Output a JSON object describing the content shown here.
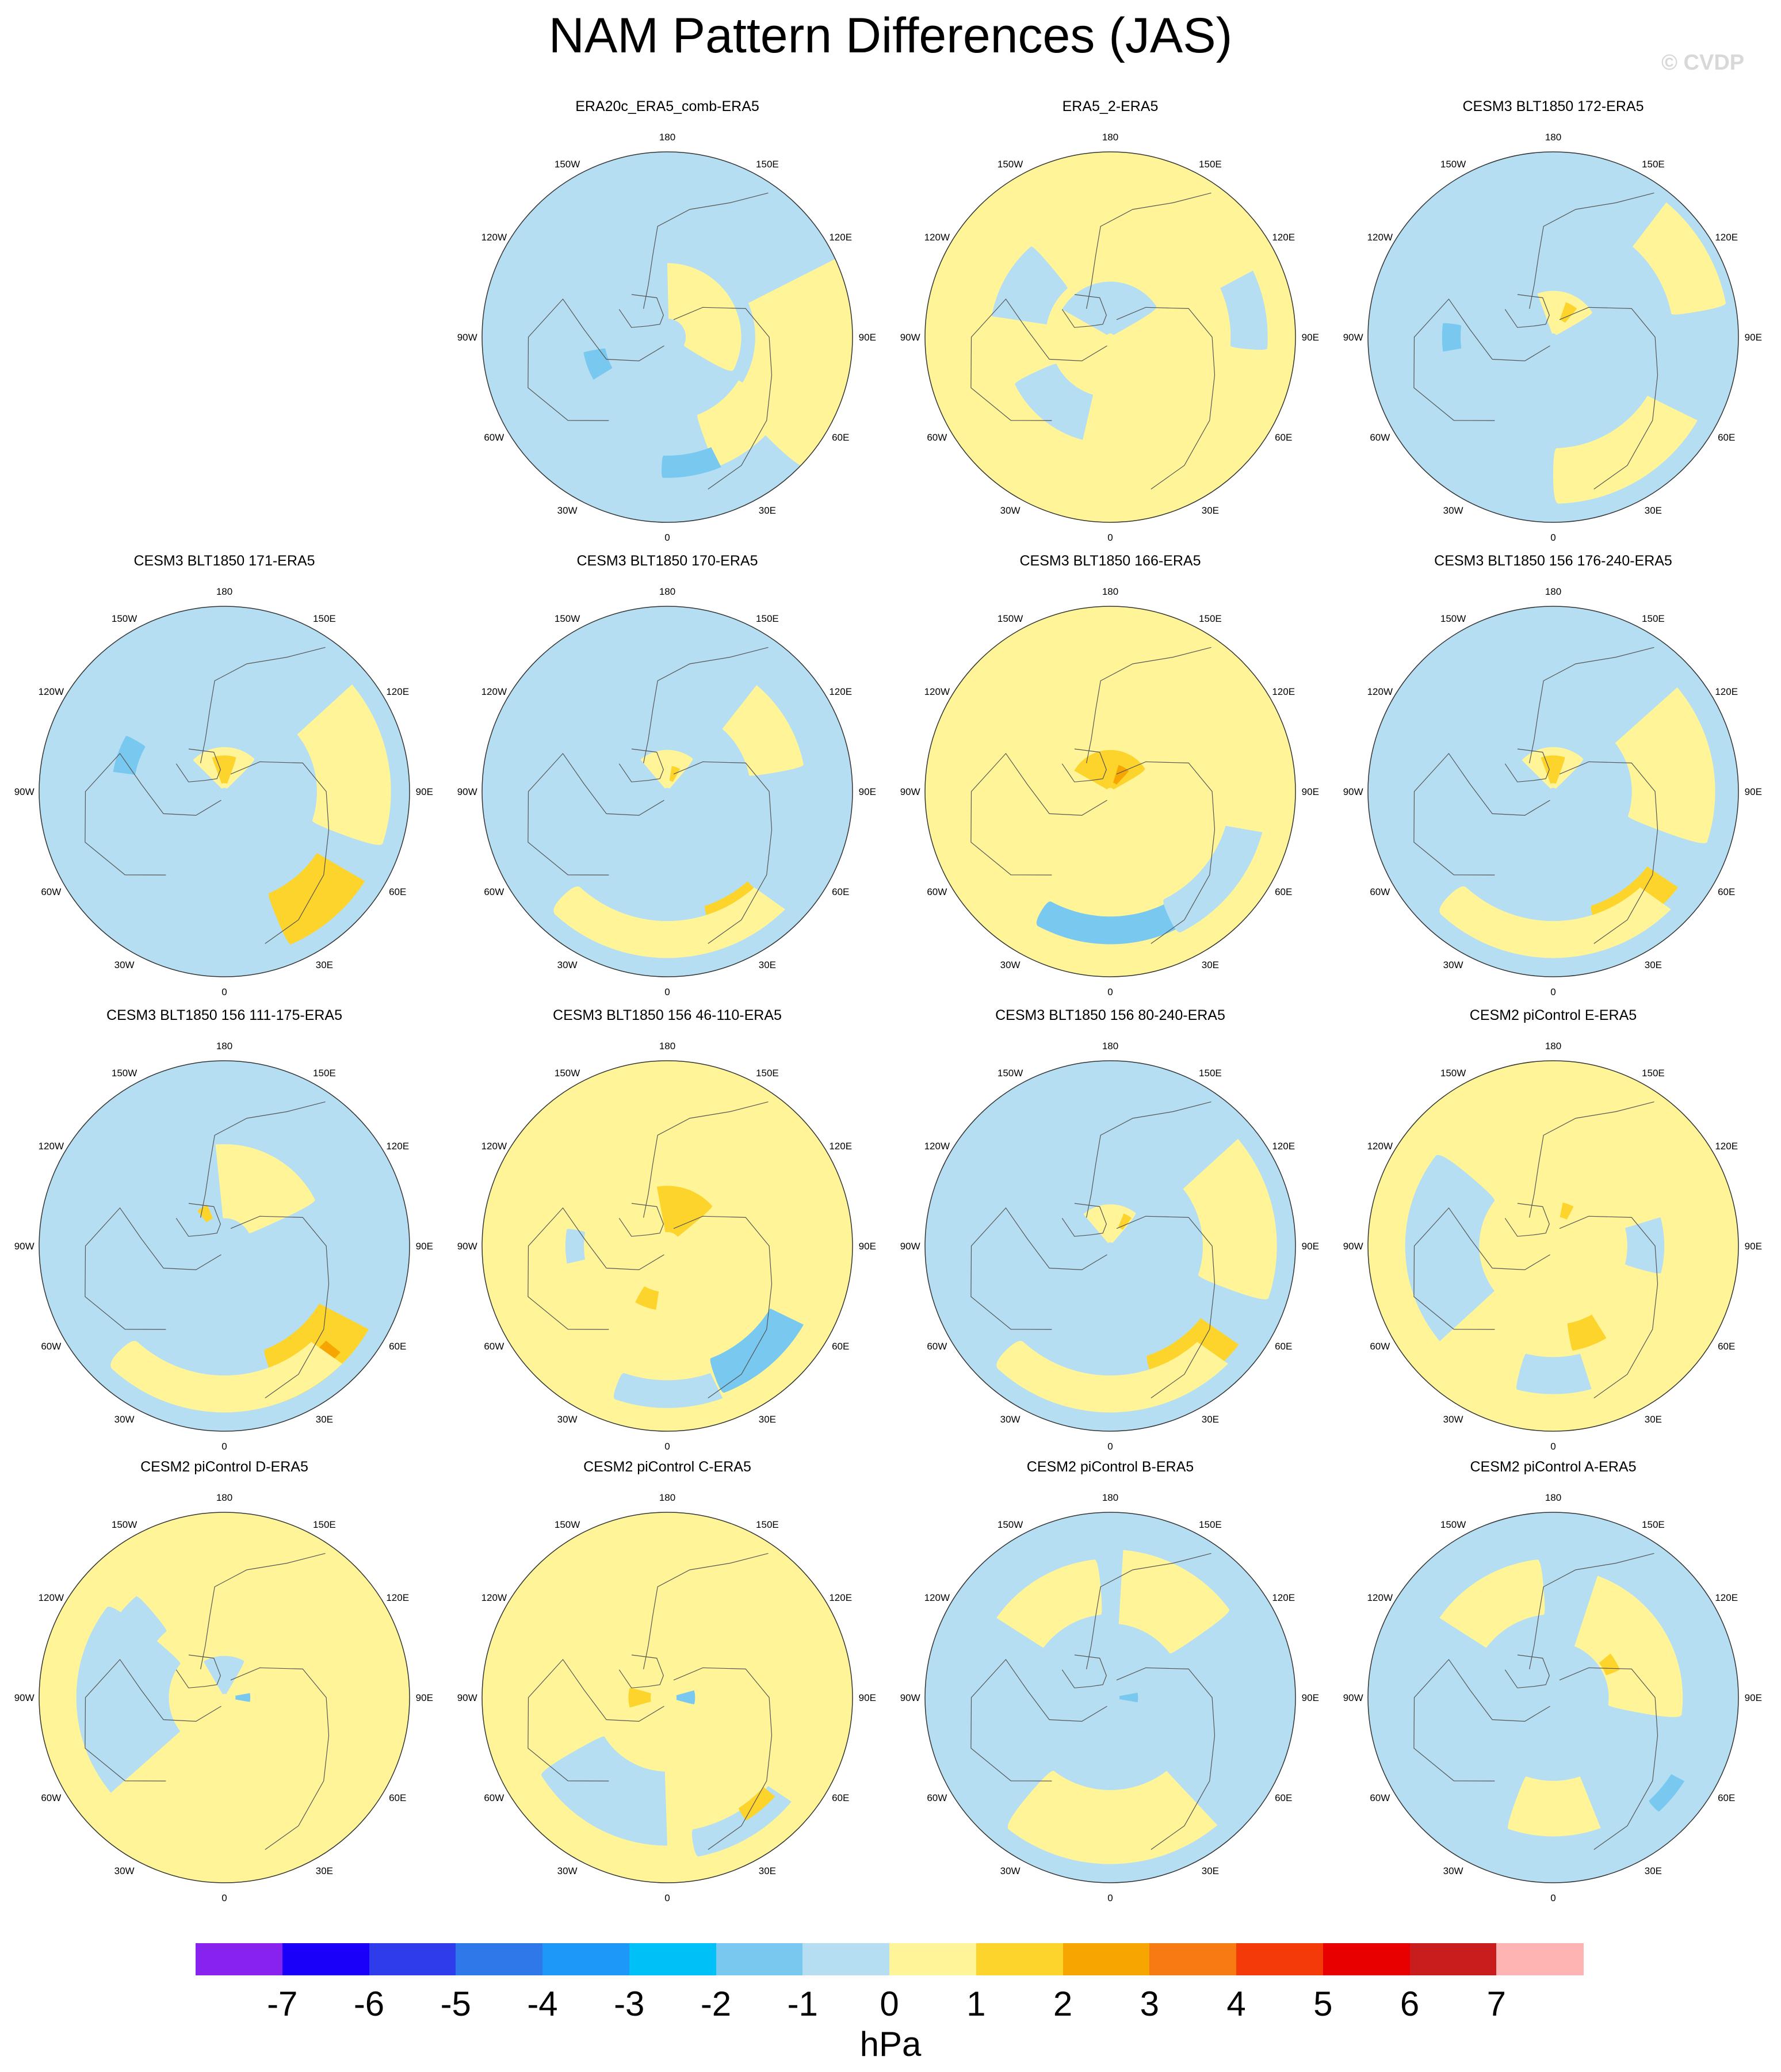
{
  "title": "NAM Pattern Differences (JAS)",
  "watermark": "© CVDP",
  "longitude_labels": [
    "180",
    "150E",
    "120E",
    "90E",
    "60E",
    "30E",
    "0",
    "30W",
    "60W",
    "90W",
    "120W",
    "150W"
  ],
  "panels": [
    {
      "title": "ERA20c_ERA5_comb-ERA5",
      "background": "#b5def2",
      "blobs": [
        {
          "a": 100,
          "r": 0.75,
          "w": 70,
          "l": 0.55,
          "c": "#fff598"
        },
        {
          "a": 140,
          "r": 0.6,
          "w": 40,
          "l": 0.3,
          "c": "#fff598"
        },
        {
          "a": 60,
          "r": 0.25,
          "w": 120,
          "l": 0.3,
          "c": "#fff598"
        },
        {
          "a": 170,
          "r": 0.7,
          "w": 25,
          "l": 0.12,
          "c": "#78c8f0"
        },
        {
          "a": 250,
          "r": 0.4,
          "w": 20,
          "l": 0.12,
          "c": "#78c8f0"
        }
      ]
    },
    {
      "title": "ERA5_2-ERA5",
      "background": "#fff598",
      "blobs": [
        {
          "a": 0,
          "r": 0.15,
          "w": 120,
          "l": 0.3,
          "c": "#b5def2"
        },
        {
          "a": 300,
          "r": 0.5,
          "w": 40,
          "l": 0.3,
          "c": "#b5def2"
        },
        {
          "a": 80,
          "r": 0.75,
          "w": 30,
          "l": 0.2,
          "c": "#b5def2"
        },
        {
          "a": 220,
          "r": 0.45,
          "w": 50,
          "l": 0.25,
          "c": "#b5def2"
        }
      ]
    },
    {
      "title": "CESM3 BLT1850 172-ERA5",
      "background": "#b5def2",
      "blobs": [
        {
          "a": 150,
          "r": 0.75,
          "w": 60,
          "l": 0.3,
          "c": "#fff598"
        },
        {
          "a": 20,
          "r": 0.1,
          "w": 80,
          "l": 0.3,
          "c": "#fff598"
        },
        {
          "a": 60,
          "r": 0.8,
          "w": 40,
          "l": 0.3,
          "c": "#fff598"
        },
        {
          "a": 30,
          "r": 0.15,
          "w": 20,
          "l": 0.1,
          "c": "#fdd42b"
        },
        {
          "a": 270,
          "r": 0.55,
          "w": 15,
          "l": 0.1,
          "c": "#78c8f0"
        }
      ]
    },
    {
      "title": "CESM3 BLT1850 171-ERA5",
      "background": "#b5def2",
      "blobs": [
        {
          "a": 140,
          "r": 0.75,
          "w": 35,
          "l": 0.3,
          "c": "#fdd42b"
        },
        {
          "a": 80,
          "r": 0.7,
          "w": 60,
          "l": 0.4,
          "c": "#fff598"
        },
        {
          "a": 0,
          "r": 0.1,
          "w": 90,
          "l": 0.28,
          "c": "#fff598"
        },
        {
          "a": 0,
          "r": 0.12,
          "w": 40,
          "l": 0.15,
          "c": "#fdd42b"
        },
        {
          "a": 290,
          "r": 0.55,
          "w": 20,
          "l": 0.12,
          "c": "#78c8f0"
        }
      ]
    },
    {
      "title": "CESM3 BLT1850 170-ERA5",
      "background": "#b5def2",
      "blobs": [
        {
          "a": 150,
          "r": 0.75,
          "w": 25,
          "l": 0.2,
          "c": "#fdd42b"
        },
        {
          "a": 180,
          "r": 0.8,
          "w": 90,
          "l": 0.2,
          "c": "#fff598"
        },
        {
          "a": 60,
          "r": 0.6,
          "w": 40,
          "l": 0.3,
          "c": "#fff598"
        },
        {
          "a": 0,
          "r": 0.1,
          "w": 80,
          "l": 0.25,
          "c": "#fff598"
        },
        {
          "a": 20,
          "r": 0.1,
          "w": 20,
          "l": 0.08,
          "c": "#fdd42b"
        }
      ]
    },
    {
      "title": "CESM3 BLT1850 166-ERA5",
      "background": "#fff598",
      "blobs": [
        {
          "a": 180,
          "r": 0.75,
          "w": 60,
          "l": 0.15,
          "c": "#78c8f0"
        },
        {
          "a": 130,
          "r": 0.75,
          "w": 50,
          "l": 0.2,
          "c": "#b5def2"
        },
        {
          "a": 0,
          "r": 0.05,
          "w": 120,
          "l": 0.35,
          "c": "#fdd42b"
        },
        {
          "a": 30,
          "r": 0.1,
          "w": 25,
          "l": 0.1,
          "c": "#f7a500"
        }
      ]
    },
    {
      "title": "CESM3 BLT1850 156 176-240-ERA5",
      "background": "#b5def2",
      "blobs": [
        {
          "a": 145,
          "r": 0.75,
          "w": 35,
          "l": 0.2,
          "c": "#fdd42b"
        },
        {
          "a": 180,
          "r": 0.8,
          "w": 90,
          "l": 0.2,
          "c": "#fff598"
        },
        {
          "a": 80,
          "r": 0.65,
          "w": 60,
          "l": 0.45,
          "c": "#fff598"
        },
        {
          "a": 0,
          "r": 0.1,
          "w": 90,
          "l": 0.28,
          "c": "#fff598"
        },
        {
          "a": 0,
          "r": 0.12,
          "w": 40,
          "l": 0.15,
          "c": "#fdd42b"
        }
      ]
    },
    {
      "title": "CESM3 BLT1850 156 111-175-ERA5",
      "background": "#b5def2",
      "blobs": [
        {
          "a": 140,
          "r": 0.75,
          "w": 40,
          "l": 0.3,
          "c": "#fdd42b"
        },
        {
          "a": 140,
          "r": 0.8,
          "w": 15,
          "l": 0.1,
          "c": "#f7a500"
        },
        {
          "a": 180,
          "r": 0.8,
          "w": 90,
          "l": 0.2,
          "c": "#fff598"
        },
        {
          "a": 30,
          "r": 0.35,
          "w": 70,
          "l": 0.4,
          "c": "#fff598"
        },
        {
          "a": 330,
          "r": 0.2,
          "w": 15,
          "l": 0.08,
          "c": "#fdd42b"
        }
      ]
    },
    {
      "title": "CESM3 BLT1850 156 46-110-ERA5",
      "background": "#fff598",
      "blobs": [
        {
          "a": 140,
          "r": 0.75,
          "w": 40,
          "l": 0.2,
          "c": "#78c8f0"
        },
        {
          "a": 180,
          "r": 0.8,
          "w": 40,
          "l": 0.15,
          "c": "#b5def2"
        },
        {
          "a": 20,
          "r": 0.2,
          "w": 60,
          "l": 0.25,
          "c": "#fdd42b"
        },
        {
          "a": 200,
          "r": 0.3,
          "w": 20,
          "l": 0.1,
          "c": "#fdd42b"
        },
        {
          "a": 270,
          "r": 0.5,
          "w": 20,
          "l": 0.1,
          "c": "#b5def2"
        }
      ]
    },
    {
      "title": "CESM3 BLT1850 156 80-240-ERA5",
      "background": "#b5def2",
      "blobs": [
        {
          "a": 145,
          "r": 0.75,
          "w": 35,
          "l": 0.25,
          "c": "#fdd42b"
        },
        {
          "a": 180,
          "r": 0.8,
          "w": 90,
          "l": 0.2,
          "c": "#fff598"
        },
        {
          "a": 80,
          "r": 0.7,
          "w": 60,
          "l": 0.4,
          "c": "#fff598"
        },
        {
          "a": 0,
          "r": 0.1,
          "w": 80,
          "l": 0.25,
          "c": "#fff598"
        },
        {
          "a": 30,
          "r": 0.15,
          "w": 15,
          "l": 0.08,
          "c": "#fdd42b"
        }
      ]
    },
    {
      "title": "CESM2 piControl E-ERA5",
      "background": "#fff598",
      "blobs": [
        {
          "a": 270,
          "r": 0.6,
          "w": 80,
          "l": 0.4,
          "c": "#b5def2"
        },
        {
          "a": 180,
          "r": 0.7,
          "w": 30,
          "l": 0.2,
          "c": "#b5def2"
        },
        {
          "a": 160,
          "r": 0.5,
          "w": 20,
          "l": 0.15,
          "c": "#fdd42b"
        },
        {
          "a": 90,
          "r": 0.5,
          "w": 30,
          "l": 0.2,
          "c": "#b5def2"
        },
        {
          "a": 20,
          "r": 0.2,
          "w": 15,
          "l": 0.08,
          "c": "#fdd42b"
        }
      ]
    },
    {
      "title": "CESM2 piControl D-ERA5",
      "background": "#fff598",
      "blobs": [
        {
          "a": 270,
          "r": 0.55,
          "w": 80,
          "l": 0.5,
          "c": "#b5def2"
        },
        {
          "a": 0,
          "r": 0.1,
          "w": 60,
          "l": 0.25,
          "c": "#b5def2"
        },
        {
          "a": 90,
          "r": 0.1,
          "w": 20,
          "l": 0.08,
          "c": "#78c8f0"
        },
        {
          "a": 300,
          "r": 0.6,
          "w": 40,
          "l": 0.25,
          "c": "#b5def2"
        }
      ]
    },
    {
      "title": "CESM2 piControl C-ERA5",
      "background": "#fff598",
      "blobs": [
        {
          "a": 210,
          "r": 0.6,
          "w": 60,
          "l": 0.4,
          "c": "#b5def2"
        },
        {
          "a": 150,
          "r": 0.8,
          "w": 40,
          "l": 0.15,
          "c": "#b5def2"
        },
        {
          "a": 90,
          "r": 0.1,
          "w": 30,
          "l": 0.1,
          "c": "#78c8f0"
        },
        {
          "a": 270,
          "r": 0.15,
          "w": 30,
          "l": 0.12,
          "c": "#fdd42b"
        },
        {
          "a": 140,
          "r": 0.75,
          "w": 15,
          "l": 0.08,
          "c": "#fdd42b"
        }
      ]
    },
    {
      "title": "CESM2 piControl B-ERA5",
      "background": "#b5def2",
      "blobs": [
        {
          "a": 180,
          "r": 0.7,
          "w": 80,
          "l": 0.4,
          "c": "#fff598"
        },
        {
          "a": 30,
          "r": 0.6,
          "w": 50,
          "l": 0.4,
          "c": "#fff598"
        },
        {
          "a": 330,
          "r": 0.6,
          "w": 50,
          "l": 0.3,
          "c": "#fff598"
        },
        {
          "a": 90,
          "r": 0.1,
          "w": 20,
          "l": 0.1,
          "c": "#78c8f0"
        }
      ]
    },
    {
      "title": "CESM2 piControl A-ERA5",
      "background": "#b5def2",
      "blobs": [
        {
          "a": 60,
          "r": 0.5,
          "w": 80,
          "l": 0.4,
          "c": "#fff598"
        },
        {
          "a": 330,
          "r": 0.6,
          "w": 50,
          "l": 0.3,
          "c": "#fff598"
        },
        {
          "a": 180,
          "r": 0.6,
          "w": 40,
          "l": 0.3,
          "c": "#fff598"
        },
        {
          "a": 130,
          "r": 0.8,
          "w": 15,
          "l": 0.08,
          "c": "#78c8f0"
        },
        {
          "a": 60,
          "r": 0.35,
          "w": 15,
          "l": 0.08,
          "c": "#fdd42b"
        }
      ]
    }
  ],
  "colorbar": {
    "units": "hPa",
    "tick_labels": [
      "-7",
      "-6",
      "-5",
      "-4",
      "-3",
      "-2",
      "-1",
      "0",
      "1",
      "2",
      "3",
      "4",
      "5",
      "6",
      "7"
    ],
    "colors": [
      "#8822ee",
      "#1a00f8",
      "#2e3cec",
      "#2f78ea",
      "#1e98f8",
      "#00c0f8",
      "#78c8f0",
      "#b5def2",
      "#fff598",
      "#fdd42b",
      "#f7a500",
      "#f87a12",
      "#f43a08",
      "#e80000",
      "#c91c1c",
      "#ffb4b4"
    ]
  }
}
